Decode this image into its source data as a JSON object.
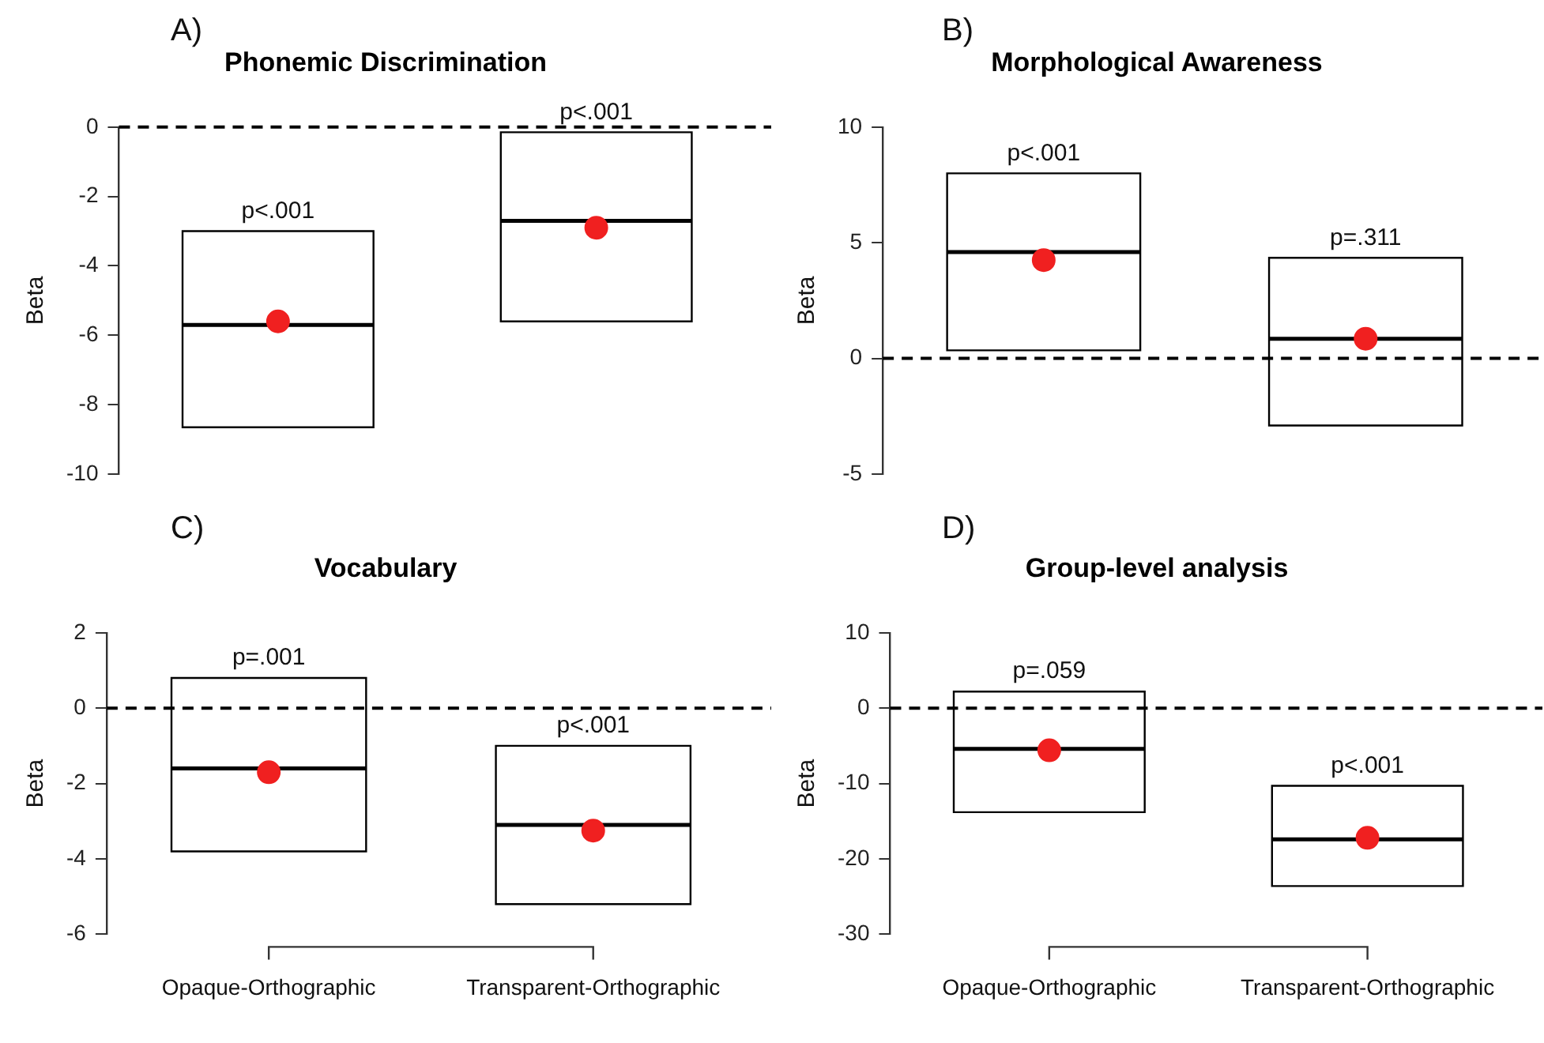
{
  "chart_data": [
    {
      "type": "box",
      "title": "Phonemic Discrimination",
      "ylabel": "Beta",
      "categories": [
        "Opaque-Orthographic",
        "Transparent-Orthographic"
      ],
      "series": [
        {
          "color": "#000000",
          "boxes": [
            {
              "low": -8.65,
              "q1": -8.65,
              "median": -5.7,
              "q3": -3.0,
              "high": -3.0
            },
            {
              "low": -5.6,
              "q1": -5.6,
              "median": -2.7,
              "q3": -0.15,
              "high": -0.15
            }
          ]
        },
        {
          "type": "scatter",
          "color": "#f02020",
          "x": [
            "Opaque-Orthographic",
            "Transparent-Orthographic"
          ],
          "values": [
            -5.6,
            -2.9
          ]
        }
      ],
      "ylim": [
        -10,
        0
      ],
      "yticks": [
        -10,
        -8,
        -6,
        -4,
        -2,
        0
      ],
      "ref_lines": [
        {
          "axis": "y",
          "value": 0,
          "line_style": "dashed"
        }
      ],
      "annotations": [
        "A)",
        {
          "text": "p<.001",
          "x": "Opaque-Orthographic",
          "y": -3.0
        },
        {
          "text": "p<.001",
          "x": "Transparent-Orthographic",
          "y": -0.15
        }
      ],
      "tick_labels": "y"
    },
    {
      "type": "box",
      "title": "Morphological Awareness",
      "ylabel": "Beta",
      "categories": [
        "Opaque-Orthographic",
        "Transparent-Orthographic"
      ],
      "series": [
        {
          "color": "#000000",
          "boxes": [
            {
              "low": 0.35,
              "q1": 0.35,
              "median": 4.6,
              "q3": 8.0,
              "high": 8.0
            },
            {
              "low": -2.9,
              "q1": -2.9,
              "median": 0.85,
              "q3": 4.35,
              "high": 4.35
            }
          ]
        },
        {
          "type": "scatter",
          "color": "#f02020",
          "x": [
            "Opaque-Orthographic",
            "Transparent-Orthographic"
          ],
          "values": [
            4.25,
            0.85
          ]
        }
      ],
      "ylim": [
        -5,
        10
      ],
      "yticks": [
        -5,
        0,
        5,
        10
      ],
      "ref_lines": [
        {
          "axis": "y",
          "value": 0,
          "line_style": "dashed"
        }
      ],
      "annotations": [
        "B)",
        {
          "text": "p<.001",
          "x": "Opaque-Orthographic",
          "y": 8.0
        },
        {
          "text": "p=.311",
          "x": "Transparent-Orthographic",
          "y": 4.35
        }
      ],
      "tick_labels": "y"
    },
    {
      "type": "box",
      "title": "Vocabulary",
      "ylabel": "Beta",
      "categories": [
        "Opaque-Orthographic",
        "Transparent-Orthographic"
      ],
      "series": [
        {
          "color": "#000000",
          "boxes": [
            {
              "low": -3.8,
              "q1": -3.8,
              "median": -1.6,
              "q3": 0.8,
              "high": 0.8
            },
            {
              "low": -5.2,
              "q1": -5.2,
              "median": -3.1,
              "q3": -1.0,
              "high": -1.0
            }
          ]
        },
        {
          "type": "scatter",
          "color": "#f02020",
          "x": [
            "Opaque-Orthographic",
            "Transparent-Orthographic"
          ],
          "values": [
            -1.7,
            -3.25
          ]
        }
      ],
      "ylim": [
        -6,
        2
      ],
      "yticks": [
        -6,
        -4,
        -2,
        0,
        2
      ],
      "ref_lines": [
        {
          "axis": "y",
          "value": 0,
          "line_style": "dashed"
        }
      ],
      "annotations": [
        "C)",
        {
          "text": "p=.001",
          "x": "Opaque-Orthographic",
          "y": 0.8
        },
        {
          "text": "p<.001",
          "x": "Transparent-Orthographic",
          "y": -1.0
        }
      ]
    },
    {
      "type": "box",
      "title": "Group-level analysis",
      "ylabel": "Beta",
      "categories": [
        "Opaque-Orthographic",
        "Transparent-Orthographic"
      ],
      "series": [
        {
          "color": "#000000",
          "boxes": [
            {
              "low": -13.8,
              "q1": -13.8,
              "median": -5.4,
              "q3": 2.2,
              "high": 2.2
            },
            {
              "low": -23.6,
              "q1": -23.6,
              "median": -17.4,
              "q3": -10.3,
              "high": -10.3
            }
          ]
        },
        {
          "type": "scatter",
          "color": "#f02020",
          "x": [
            "Opaque-Orthographic",
            "Transparent-Orthographic"
          ],
          "values": [
            -5.6,
            -17.2
          ]
        }
      ],
      "ylim": [
        -30,
        10
      ],
      "yticks": [
        -30,
        -20,
        -10,
        0,
        10
      ],
      "ref_lines": [
        {
          "axis": "y",
          "value": 0,
          "line_style": "dashed"
        }
      ],
      "annotations": [
        "D)",
        {
          "text": "p=.059",
          "x": "Opaque-Orthographic",
          "y": 2.2
        },
        {
          "text": "p<.001",
          "x": "Transparent-Orthographic",
          "y": -10.3
        }
      ]
    }
  ]
}
